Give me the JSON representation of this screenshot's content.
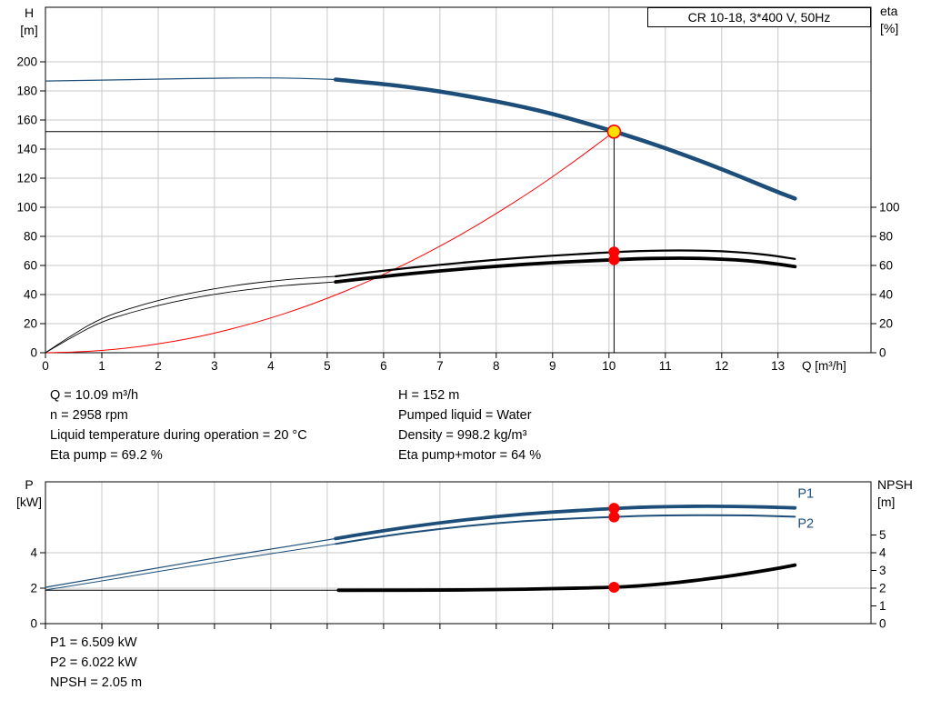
{
  "info_top": {
    "left": [
      "Q = 10.09 m³/h",
      "n = 2958 rpm",
      "Liquid temperature during operation = 20 °C",
      "Eta pump = 69.2 %"
    ],
    "right": [
      "H = 152 m",
      "Pumped liquid = Water",
      "Density = 998.2 kg/m³",
      "Eta pump+motor = 64 %"
    ]
  },
  "info_bottom": [
    "P1 = 6.509 kW",
    "P2 = 6.022 kW",
    "NPSH = 2.05 m"
  ],
  "colors": {
    "blue": "#1d4e79",
    "black": "#000000",
    "red": "#ff0000",
    "grid": "#c8c8c8",
    "marker_red": "#ff0000",
    "marker_yellow": "#ffe000"
  },
  "chart_data": [
    {
      "type": "line",
      "name": "qh-efficiency-chart",
      "title": "CR 10-18, 3*400 V, 50Hz",
      "x": {
        "min": 0,
        "max": 14.65,
        "label": "Q [m³/h]",
        "show_tick_labels": true,
        "ticks": [
          0,
          1,
          2,
          3,
          4,
          5,
          6,
          7,
          8,
          9,
          10,
          11,
          12,
          13
        ]
      },
      "y": {
        "min": 0,
        "max": 237.5,
        "label_left": "H",
        "unit_left": "[m]",
        "ticks_left": [
          0,
          20,
          40,
          60,
          80,
          100,
          120,
          140,
          160,
          180,
          200
        ],
        "label_right": "eta",
        "unit_right": "[%]",
        "ticks_right": [
          0,
          20,
          40,
          60,
          80,
          100
        ]
      },
      "crosshair": {
        "q": 10.09,
        "v": 152,
        "v_top": 156
      },
      "series": [
        {
          "name": "qh-out-of-range",
          "color": "blue",
          "width": 1.2,
          "points": [
            [
              0,
              186.8
            ],
            [
              1,
              187.4
            ],
            [
              2,
              188.1
            ],
            [
              3,
              188.7
            ],
            [
              3.8,
              189
            ],
            [
              4.5,
              188.7
            ],
            [
              5.15,
              187.8
            ]
          ]
        },
        {
          "name": "qh",
          "color": "blue",
          "width": 4.5,
          "points": [
            [
              5.15,
              187.8
            ],
            [
              6,
              184.8
            ],
            [
              6.5,
              182.4
            ],
            [
              7,
              179.6
            ],
            [
              7.5,
              176.4
            ],
            [
              8,
              172.8
            ],
            [
              8.5,
              168.8
            ],
            [
              9,
              164.2
            ],
            [
              9.5,
              158.8
            ],
            [
              10,
              153.2
            ],
            [
              10.5,
              147.2
            ],
            [
              11,
              140.6
            ],
            [
              11.5,
              133.6
            ],
            [
              12,
              126.2
            ],
            [
              12.5,
              118.4
            ],
            [
              13,
              110.4
            ],
            [
              13.3,
              106
            ]
          ]
        },
        {
          "name": "affinity-line",
          "color": "red",
          "width": 1,
          "points": [
            [
              0,
              0
            ],
            [
              0.5,
              0.4
            ],
            [
              1,
              1.5
            ],
            [
              1.5,
              3.4
            ],
            [
              2,
              6
            ],
            [
              2.5,
              9.3
            ],
            [
              3,
              13.4
            ],
            [
              3.5,
              18.3
            ],
            [
              4,
              23.9
            ],
            [
              4.5,
              30.2
            ],
            [
              5,
              37.3
            ],
            [
              5.5,
              45.2
            ],
            [
              6,
              53.8
            ],
            [
              6.5,
              63.1
            ],
            [
              7,
              73.2
            ],
            [
              7.5,
              84
            ],
            [
              8,
              95.6
            ],
            [
              8.5,
              107.9
            ],
            [
              9,
              120.9
            ],
            [
              9.5,
              134.8
            ],
            [
              10,
              149.3
            ],
            [
              10.09,
              152
            ]
          ]
        },
        {
          "name": "eta-pump-out-of-range",
          "color": "black",
          "width": 0.9,
          "points": [
            [
              0,
              0
            ],
            [
              0.5,
              13
            ],
            [
              1,
              24
            ],
            [
              1.5,
              30.5
            ],
            [
              2,
              36
            ],
            [
              2.5,
              40.5
            ],
            [
              3,
              44
            ],
            [
              3.5,
              47
            ],
            [
              4,
              49.3
            ],
            [
              4.5,
              51
            ],
            [
              5.15,
              52.5
            ]
          ]
        },
        {
          "name": "eta-pump",
          "color": "black",
          "width": 2.2,
          "points": [
            [
              5.15,
              52.5
            ],
            [
              6,
              56.5
            ],
            [
              7,
              60.5
            ],
            [
              8,
              64
            ],
            [
              9,
              66.8
            ],
            [
              10,
              69
            ],
            [
              10.5,
              69.9
            ],
            [
              11,
              70.3
            ],
            [
              11.5,
              70.3
            ],
            [
              12,
              69.8
            ],
            [
              12.5,
              68.6
            ],
            [
              13,
              66.3
            ],
            [
              13.3,
              64.5
            ]
          ]
        },
        {
          "name": "eta-pump-motor-out-of-range",
          "color": "black",
          "width": 0.9,
          "points": [
            [
              0,
              0
            ],
            [
              0.5,
              11.5
            ],
            [
              1,
              21.5
            ],
            [
              1.5,
              27.5
            ],
            [
              2,
              32.5
            ],
            [
              2.5,
              36.8
            ],
            [
              3,
              40.2
            ],
            [
              3.5,
              43
            ],
            [
              4,
              45.3
            ],
            [
              4.5,
              47
            ],
            [
              5.15,
              48.7
            ]
          ]
        },
        {
          "name": "eta-pump-motor",
          "color": "black",
          "width": 3.8,
          "points": [
            [
              5.15,
              48.7
            ],
            [
              6,
              52.5
            ],
            [
              7,
              56.3
            ],
            [
              8,
              59.5
            ],
            [
              9,
              62
            ],
            [
              10,
              63.8
            ],
            [
              10.5,
              64.6
            ],
            [
              11,
              65
            ],
            [
              11.5,
              65
            ],
            [
              12,
              64.4
            ],
            [
              12.5,
              63.2
            ],
            [
              13,
              61
            ],
            [
              13.3,
              59.2
            ]
          ]
        }
      ],
      "markers": [
        {
          "q": 10.09,
          "v": 152,
          "type": "duty",
          "name": "duty-point"
        },
        {
          "q": 10.09,
          "v": 69.2,
          "type": "dot",
          "name": "eta-pump-point"
        },
        {
          "q": 10.09,
          "v": 64,
          "type": "dot",
          "name": "eta-pump-motor-point"
        }
      ]
    },
    {
      "type": "line",
      "name": "power-npsh-chart",
      "x": {
        "min": 0,
        "max": 14.65,
        "show_tick_labels": false,
        "ticks": [
          0,
          1,
          2,
          3,
          4,
          5,
          6,
          7,
          8,
          9,
          10,
          11,
          12,
          13
        ]
      },
      "y": {
        "min": 0,
        "max": 8,
        "label_left": "P",
        "unit_left": "[kW]",
        "ticks_left": [
          0,
          2,
          4
        ],
        "label_right": "NPSH",
        "unit_right": "[m]",
        "ticks_right": [
          0,
          1,
          2,
          3,
          4,
          5
        ]
      },
      "series": [
        {
          "name": "p1-out-of-range",
          "color": "blue",
          "width": 1.2,
          "points": [
            [
              0,
              2.05
            ],
            [
              1,
              2.6
            ],
            [
              2,
              3.15
            ],
            [
              3,
              3.7
            ],
            [
              4,
              4.2
            ],
            [
              5.15,
              4.8
            ]
          ]
        },
        {
          "name": "p1",
          "color": "blue",
          "width": 3.8,
          "points": [
            [
              5.15,
              4.8
            ],
            [
              6,
              5.25
            ],
            [
              7,
              5.7
            ],
            [
              8,
              6.05
            ],
            [
              9,
              6.3
            ],
            [
              10,
              6.48
            ],
            [
              10.5,
              6.56
            ],
            [
              11,
              6.6
            ],
            [
              11.5,
              6.62
            ],
            [
              12,
              6.62
            ],
            [
              12.5,
              6.6
            ],
            [
              13,
              6.56
            ],
            [
              13.3,
              6.53
            ]
          ]
        },
        {
          "name": "p2-out-of-range",
          "color": "blue",
          "width": 1,
          "points": [
            [
              0,
              1.9
            ],
            [
              1,
              2.4
            ],
            [
              2,
              2.95
            ],
            [
              3,
              3.45
            ],
            [
              4,
              3.95
            ],
            [
              5.15,
              4.5
            ]
          ]
        },
        {
          "name": "p2",
          "color": "blue",
          "width": 2,
          "points": [
            [
              5.15,
              4.5
            ],
            [
              6,
              4.95
            ],
            [
              7,
              5.35
            ],
            [
              8,
              5.67
            ],
            [
              9,
              5.88
            ],
            [
              10,
              6.01
            ],
            [
              10.5,
              6.07
            ],
            [
              11,
              6.1
            ],
            [
              11.5,
              6.12
            ],
            [
              12,
              6.12
            ],
            [
              12.5,
              6.1
            ],
            [
              13,
              6.06
            ],
            [
              13.3,
              6.03
            ]
          ]
        },
        {
          "name": "npsh-out-of-range",
          "color": "black",
          "width": 1,
          "points": [
            [
              0,
              1.88
            ],
            [
              5.2,
              1.88
            ]
          ]
        },
        {
          "name": "npsh",
          "color": "black",
          "width": 3.8,
          "points": [
            [
              5.2,
              1.88
            ],
            [
              6,
              1.88
            ],
            [
              7,
              1.89
            ],
            [
              8,
              1.92
            ],
            [
              9,
              1.97
            ],
            [
              10,
              2.04
            ],
            [
              10.5,
              2.12
            ],
            [
              11,
              2.25
            ],
            [
              11.5,
              2.42
            ],
            [
              12,
              2.62
            ],
            [
              12.5,
              2.85
            ],
            [
              13,
              3.12
            ],
            [
              13.3,
              3.3
            ]
          ]
        }
      ],
      "markers": [
        {
          "q": 10.09,
          "v": 6.509,
          "type": "dot",
          "name": "p1-point"
        },
        {
          "q": 10.09,
          "v": 6.022,
          "type": "dot",
          "name": "p2-point"
        },
        {
          "q": 10.09,
          "v": 2.05,
          "type": "dot",
          "name": "npsh-point"
        }
      ],
      "series_labels": [
        {
          "text": "P1",
          "q": 13.35,
          "v": 7.1
        },
        {
          "text": "P2",
          "q": 13.35,
          "v": 5.4
        }
      ]
    }
  ]
}
